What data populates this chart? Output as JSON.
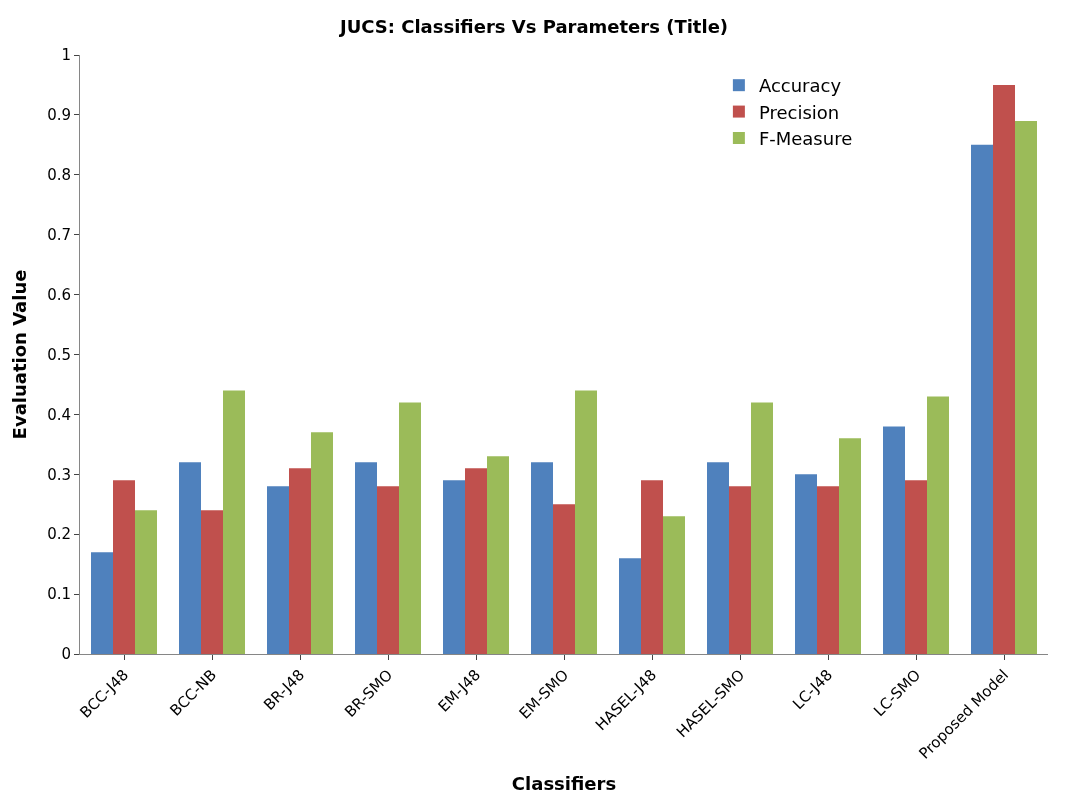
{
  "chart_data": {
    "type": "bar",
    "title": "JUCS: Classifiers Vs Parameters (Title)",
    "xlabel": "Classifiers",
    "ylabel": "Evaluation Value",
    "categories": [
      "BCC-J48",
      "BCC-NB",
      "BR-J48",
      "BR-SMO",
      "EM-J48",
      "EM-SMO",
      "HASEL-J48",
      "HASEL-SMO",
      "LC-J48",
      "LC-SMO",
      "Proposed Model"
    ],
    "series": [
      {
        "name": "Accuracy",
        "color": "#4f81bd",
        "values": [
          0.17,
          0.32,
          0.28,
          0.32,
          0.29,
          0.32,
          0.16,
          0.32,
          0.3,
          0.38,
          0.85
        ]
      },
      {
        "name": "Precision",
        "color": "#c0504d",
        "values": [
          0.29,
          0.24,
          0.31,
          0.28,
          0.31,
          0.25,
          0.29,
          0.28,
          0.28,
          0.29,
          0.95
        ]
      },
      {
        "name": "F-Measure",
        "color": "#9bbb59",
        "values": [
          0.24,
          0.44,
          0.37,
          0.42,
          0.33,
          0.44,
          0.23,
          0.42,
          0.36,
          0.43,
          0.89
        ]
      }
    ],
    "ylim": [
      0,
      1
    ],
    "yticks": [
      0,
      0.1,
      0.2,
      0.3,
      0.4,
      0.5,
      0.6,
      0.7,
      0.8,
      0.9,
      1
    ],
    "grid": false,
    "legend": "top right"
  }
}
